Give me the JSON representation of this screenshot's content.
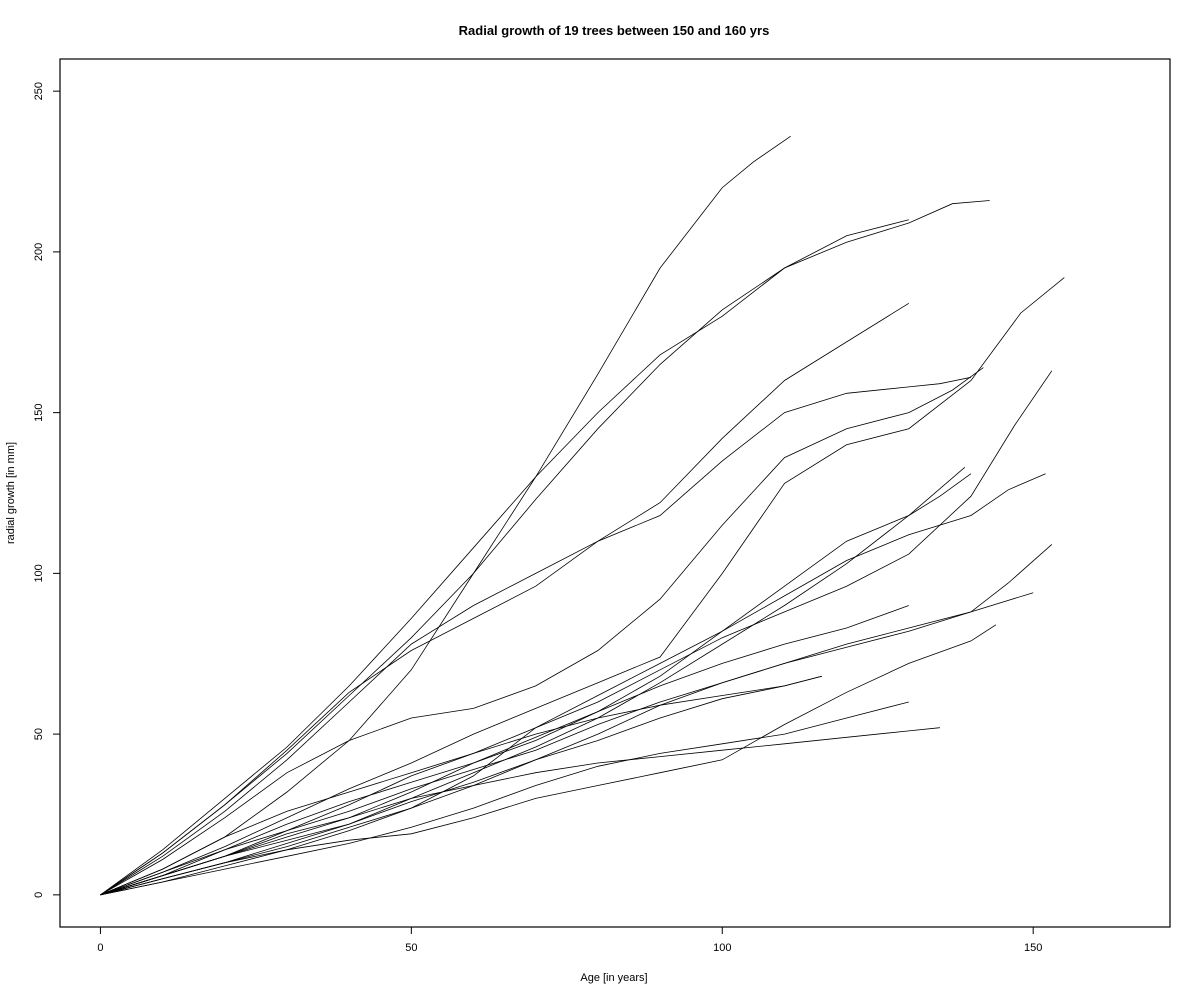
{
  "chart_data": {
    "type": "line",
    "title": "Radial growth of 19 trees between 150 and 160 yrs",
    "xlabel": "Age [in years]",
    "ylabel": "radial growth [in mm]",
    "xlim": [
      -6.5,
      172
    ],
    "ylim": [
      -10,
      260
    ],
    "xticks": [
      0,
      50,
      100,
      150
    ],
    "yticks": [
      0,
      50,
      100,
      150,
      200,
      250
    ],
    "grid": false,
    "legend": "none",
    "series": [
      {
        "x": [
          0,
          10,
          20,
          30,
          40,
          50,
          60,
          70,
          80,
          90,
          100,
          105,
          111
        ],
        "y": [
          0,
          14,
          30,
          46,
          65,
          86,
          108,
          130,
          162,
          195,
          220,
          228,
          236
        ]
      },
      {
        "x": [
          0,
          10,
          20,
          30,
          40,
          50,
          60,
          70,
          80,
          90,
          100,
          110,
          120,
          130,
          137,
          143
        ],
        "y": [
          0,
          13,
          28,
          44,
          62,
          80,
          100,
          123,
          145,
          165,
          182,
          195,
          203,
          209,
          215,
          216
        ]
      },
      {
        "x": [
          0,
          10,
          20,
          30,
          40,
          50,
          60,
          70,
          80,
          90,
          100,
          110,
          120,
          130
        ],
        "y": [
          0,
          8,
          18,
          32,
          48,
          70,
          100,
          130,
          150,
          168,
          180,
          195,
          205,
          210
        ]
      },
      {
        "x": [
          0,
          10,
          20,
          30,
          40,
          50,
          60,
          70,
          80,
          90,
          100,
          110,
          120,
          130
        ],
        "y": [
          0,
          12,
          26,
          42,
          60,
          78,
          90,
          100,
          110,
          122,
          142,
          160,
          172,
          184
        ]
      },
      {
        "x": [
          0,
          10,
          20,
          30,
          40,
          50,
          60,
          70,
          80,
          90,
          100,
          110,
          120,
          130,
          135,
          140
        ],
        "y": [
          0,
          13,
          28,
          45,
          63,
          76,
          86,
          96,
          110,
          118,
          135,
          150,
          156,
          158,
          159,
          161
        ]
      },
      {
        "x": [
          0,
          10,
          20,
          30,
          40,
          50,
          60,
          70,
          80,
          90,
          100,
          110,
          120,
          130,
          137,
          142
        ],
        "y": [
          0,
          11,
          24,
          38,
          48,
          55,
          58,
          65,
          76,
          92,
          115,
          136,
          145,
          150,
          157,
          164
        ]
      },
      {
        "x": [
          0,
          10,
          20,
          30,
          40,
          50,
          60,
          70,
          80,
          90,
          100,
          110,
          120,
          130,
          140,
          148,
          155
        ],
        "y": [
          0,
          7,
          15,
          24,
          33,
          41,
          50,
          58,
          66,
          74,
          100,
          128,
          140,
          145,
          160,
          181,
          192
        ]
      },
      {
        "x": [
          0,
          10,
          20,
          30,
          40,
          50,
          60,
          70,
          80,
          90,
          100,
          110,
          120,
          130,
          140,
          147,
          153
        ],
        "y": [
          0,
          6,
          12,
          20,
          28,
          37,
          44,
          52,
          60,
          70,
          80,
          88,
          96,
          106,
          124,
          146,
          163
        ]
      },
      {
        "x": [
          0,
          10,
          20,
          30,
          40,
          50,
          60,
          70,
          80,
          90,
          100,
          110,
          120,
          130,
          140,
          146,
          152
        ],
        "y": [
          0,
          5,
          10,
          15,
          21,
          27,
          37,
          52,
          62,
          72,
          82,
          93,
          104,
          112,
          118,
          126,
          131
        ]
      },
      {
        "x": [
          0,
          10,
          20,
          30,
          40,
          50,
          60,
          70,
          80,
          90,
          100,
          110,
          120,
          130,
          135,
          140
        ],
        "y": [
          0,
          6,
          14,
          22,
          29,
          35,
          41,
          48,
          57,
          68,
          82,
          96,
          110,
          118,
          124,
          131
        ]
      },
      {
        "x": [
          0,
          10,
          20,
          30,
          40,
          50,
          60,
          70,
          80,
          90,
          100,
          110,
          120,
          130,
          139
        ],
        "y": [
          0,
          5,
          10,
          16,
          22,
          30,
          38,
          46,
          55,
          66,
          78,
          90,
          103,
          118,
          133
        ]
      },
      {
        "x": [
          0,
          10,
          20,
          30,
          40,
          50,
          60,
          70,
          80,
          90,
          100,
          110,
          120,
          130,
          140,
          146,
          153
        ],
        "y": [
          0,
          4,
          9,
          14,
          20,
          27,
          34,
          42,
          50,
          59,
          66,
          72,
          78,
          83,
          88,
          97,
          109
        ]
      },
      {
        "x": [
          0,
          10,
          20,
          30,
          40,
          50,
          60,
          70,
          80,
          90,
          100,
          110,
          120,
          130,
          140,
          150
        ],
        "y": [
          0,
          7,
          14,
          20,
          26,
          33,
          39,
          45,
          53,
          60,
          66,
          72,
          77,
          82,
          88,
          94
        ]
      },
      {
        "x": [
          0,
          10,
          20,
          30,
          40,
          50,
          60,
          70,
          80,
          90,
          100,
          110,
          120,
          130
        ],
        "y": [
          0,
          6,
          12,
          19,
          24,
          32,
          41,
          49,
          57,
          65,
          72,
          78,
          83,
          90
        ]
      },
      {
        "x": [
          0,
          10,
          20,
          30,
          40,
          50,
          60,
          70,
          80,
          90,
          100,
          110,
          116
        ],
        "y": [
          0,
          6,
          12,
          17,
          22,
          29,
          35,
          42,
          48,
          55,
          61,
          65,
          68
        ]
      },
      {
        "x": [
          0,
          10,
          20,
          30,
          40,
          50,
          60,
          70,
          80,
          90,
          100,
          110,
          120,
          130,
          140,
          144
        ],
        "y": [
          0,
          5,
          10,
          14,
          17,
          19,
          24,
          30,
          34,
          38,
          42,
          53,
          63,
          72,
          79,
          84
        ]
      },
      {
        "x": [
          0,
          10,
          20,
          30,
          40,
          50,
          60,
          70,
          80,
          90,
          100,
          110,
          120,
          130
        ],
        "y": [
          0,
          4,
          8,
          12,
          16,
          21,
          27,
          34,
          40,
          44,
          47,
          50,
          55,
          60
        ]
      },
      {
        "x": [
          0,
          10,
          20,
          30,
          40,
          50,
          60,
          70,
          80,
          90,
          100,
          110,
          120,
          130,
          135
        ],
        "y": [
          0,
          6,
          12,
          18,
          24,
          30,
          34,
          38,
          41,
          43,
          45,
          47,
          49,
          51,
          52
        ]
      },
      {
        "x": [
          0,
          10,
          20,
          30,
          40,
          50,
          60,
          70,
          80,
          90,
          100,
          110,
          116
        ],
        "y": [
          0,
          8,
          18,
          26,
          32,
          38,
          44,
          50,
          55,
          59,
          62,
          65,
          68
        ]
      }
    ]
  }
}
